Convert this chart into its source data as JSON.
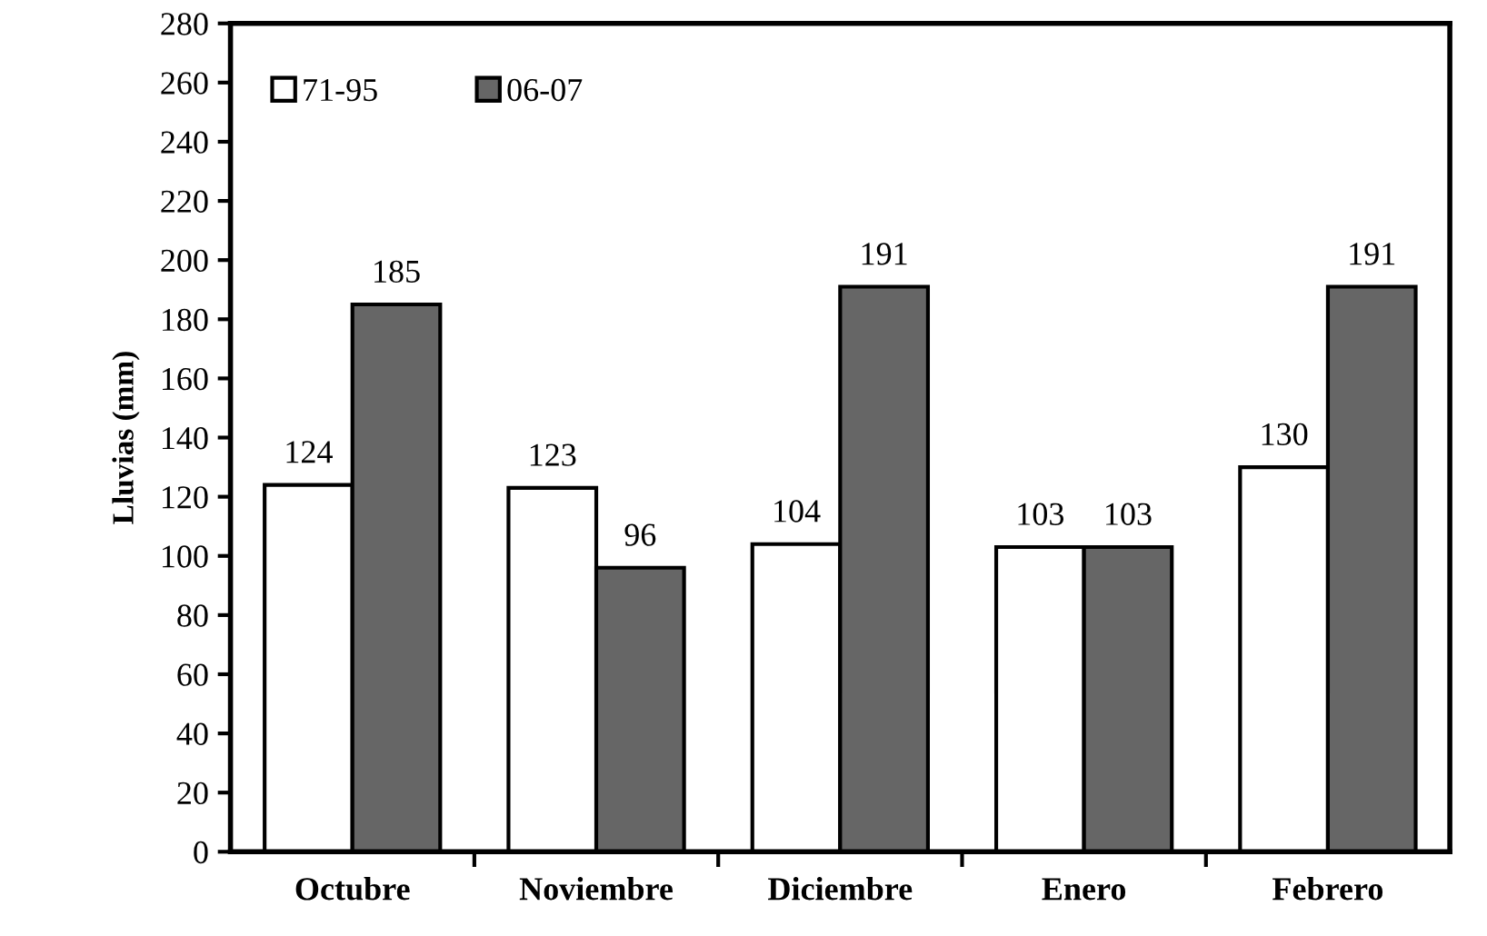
{
  "chart_data": {
    "type": "bar",
    "ylabel": "Lluvias (mm)",
    "categories": [
      "Octubre",
      "Noviembre",
      "Diciembre",
      "Enero",
      "Febrero"
    ],
    "series": [
      {
        "name": "71-95",
        "color": "#ffffff",
        "values": [
          124,
          123,
          104,
          103,
          130
        ]
      },
      {
        "name": "06-07",
        "color": "#666666",
        "values": [
          185,
          96,
          191,
          103,
          191
        ]
      }
    ],
    "ylim": [
      0,
      280
    ],
    "yticks": [
      0,
      20,
      40,
      60,
      80,
      100,
      120,
      140,
      160,
      180,
      200,
      220,
      240,
      260,
      280
    ],
    "data_labels": true,
    "grid": false,
    "legend": "top left"
  }
}
